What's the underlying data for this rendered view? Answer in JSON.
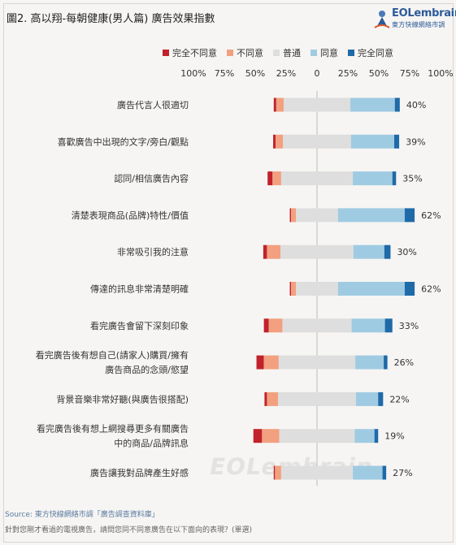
{
  "header": {
    "title": "圖2. 高以翔-每朝健康(男人篇) 廣告效果指數",
    "logo_name": "EOLembrain",
    "logo_sub": "東方快線網絡市調"
  },
  "legend": [
    {
      "name": "完全不同意",
      "color": "#c0222b"
    },
    {
      "name": "不同意",
      "color": "#f2a07f"
    },
    {
      "name": "普通",
      "color": "#dedede"
    },
    {
      "name": "同意",
      "color": "#9fcbe2"
    },
    {
      "name": "完全同意",
      "color": "#1f6aa8"
    }
  ],
  "axis_ticks": [
    "100%",
    "75%",
    "50%",
    "25%",
    "0",
    "25%",
    "50%",
    "75%",
    "100%"
  ],
  "watermark": "EOLembrain",
  "footer": {
    "source": "Source: 東方快線網絡市調「廣告調查資料庫」",
    "note": "針對您剛才看過的電視廣告，請問您同不同意廣告在以下面向的表現？(單選)"
  },
  "chart_data": {
    "type": "bar",
    "orientation": "horizontal-diverging",
    "xlim": [
      -100,
      100
    ],
    "categories": [
      [
        "廣告代言人很適切"
      ],
      [
        "喜歡廣告中出現的文字/旁白/觀點"
      ],
      [
        "認同/相信廣告內容"
      ],
      [
        "清楚表現商品(品牌)特性/價值"
      ],
      [
        "非常吸引我的注意"
      ],
      [
        "傳達的訊息非常清楚明確"
      ],
      [
        "看完廣告會留下深刻印象"
      ],
      [
        "看完廣告後有想自己(請家人)購買/擁有",
        "廣告商品的念頭/慾望"
      ],
      [
        "背景音樂非常好聽(與廣告很搭配)"
      ],
      [
        "看完廣告後有想上網搜尋更多有關廣告",
        "中的商品/品牌訊息"
      ],
      [
        "廣告讓我對品牌產生好感"
      ]
    ],
    "series": [
      {
        "name": "完全不同意",
        "values": [
          2,
          2,
          4,
          1,
          3,
          1,
          4,
          6,
          2,
          7,
          1
        ]
      },
      {
        "name": "不同意",
        "values": [
          6,
          6,
          7,
          4,
          11,
          4,
          11,
          12,
          9,
          14,
          5
        ]
      },
      {
        "name": "普通",
        "values": [
          54,
          55,
          58,
          34,
          59,
          34,
          56,
          62,
          63,
          61,
          58
        ]
      },
      {
        "name": "同意",
        "values": [
          36,
          35,
          32,
          54,
          25,
          54,
          27,
          23,
          18,
          16,
          24
        ]
      },
      {
        "name": "完全同意",
        "values": [
          4,
          4,
          3,
          8,
          5,
          8,
          6,
          3,
          4,
          3,
          3
        ]
      }
    ],
    "labels": [
      "40%",
      "39%",
      "35%",
      "62%",
      "30%",
      "62%",
      "33%",
      "26%",
      "22%",
      "19%",
      "27%"
    ]
  }
}
